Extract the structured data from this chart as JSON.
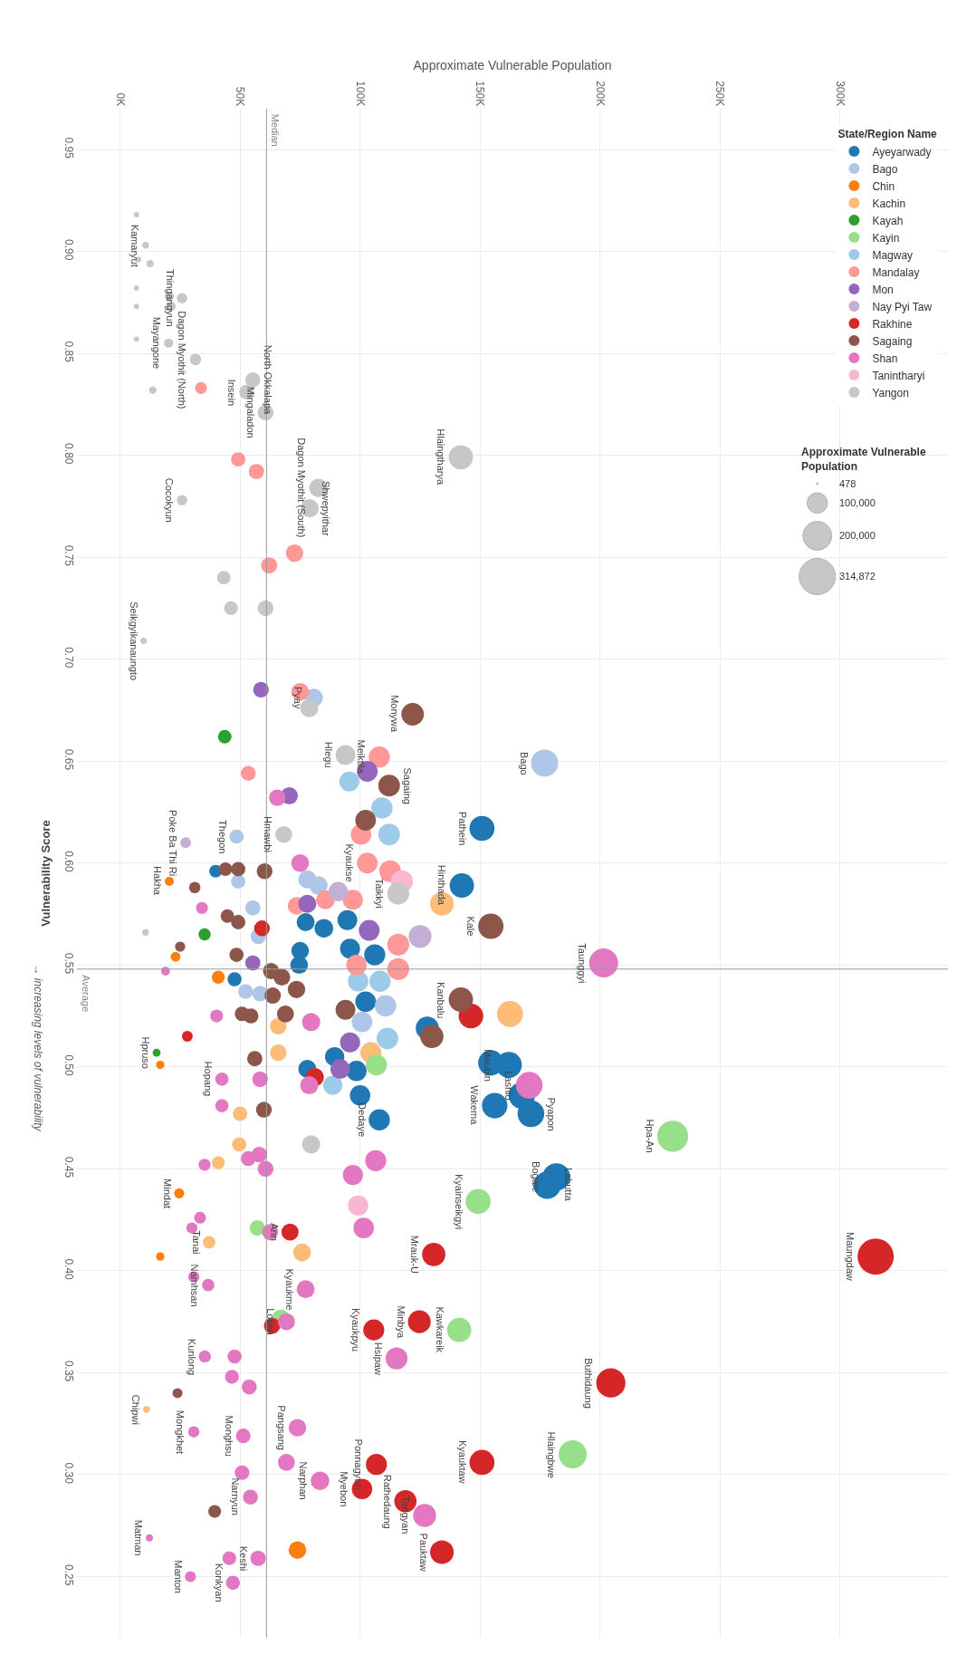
{
  "chart_data": {
    "type": "bubble",
    "xlabel": "Approximate Vulnerable Population",
    "ylabel": "Vulnerability Score",
    "legend_title": "State/Region Name",
    "legend": "top right",
    "grid": true,
    "marker": "circle",
    "xlim": [
      -18000,
      345000
    ],
    "ylim": [
      0.22,
      0.97
    ],
    "xticks": [
      {
        "value": 0,
        "label": "0K"
      },
      {
        "value": 50000,
        "label": "50K"
      },
      {
        "value": 100000,
        "label": "100K"
      },
      {
        "value": 150000,
        "label": "150K"
      },
      {
        "value": 200000,
        "label": "200K"
      },
      {
        "value": 250000,
        "label": "250K"
      },
      {
        "value": 300000,
        "label": "300K"
      }
    ],
    "yticks": [
      0.95,
      {
        "value": 0.9,
        "label": "0.90"
      },
      0.85,
      {
        "value": 0.8,
        "label": "0.80"
      },
      0.75,
      {
        "value": 0.7,
        "label": "0.70"
      },
      0.65,
      {
        "value": 0.6,
        "label": "0.60"
      },
      0.55,
      {
        "value": 0.5,
        "label": "0.50"
      },
      0.45,
      {
        "value": 0.4,
        "label": "0.40"
      },
      0.35,
      {
        "value": 0.3,
        "label": "0.30"
      },
      0.25
    ],
    "size_legend": [
      {
        "value": 478,
        "label": "478"
      },
      {
        "value": 100000,
        "label": "100,000"
      },
      {
        "value": 200000,
        "label": "200,000"
      },
      {
        "value": 314872,
        "label": "314,872"
      }
    ],
    "ref_lines": [
      {
        "axis": "x",
        "value": 61000,
        "label": "Median",
        "color": "#999999"
      },
      {
        "axis": "y",
        "value": 0.548,
        "label": "Average",
        "color": "#999999"
      }
    ],
    "series": [
      {
        "name": "Ayeyarwady",
        "color": "#1f77b4",
        "x": [
          150800,
          142400,
          162000,
          154500,
          167400,
          171200,
          156100,
          181800,
          178000,
          108000,
          128000,
          94700,
          95800,
          106100,
          77300,
          84900,
          75000,
          74600,
          39800,
          47700,
          102300,
          89400,
          98500,
          100000,
          78000
        ],
        "values": [
          0.617,
          0.589,
          0.501,
          0.502,
          0.486,
          0.477,
          0.481,
          0.446,
          0.442,
          0.474,
          0.519,
          0.572,
          0.558,
          0.555,
          0.571,
          0.568,
          0.557,
          0.55,
          0.596,
          0.543,
          0.532,
          0.505,
          0.498,
          0.486,
          0.499
        ],
        "sizes": [
          150800,
          142400,
          162000,
          154500,
          167400,
          171200,
          156100,
          181800,
          178000,
          108000,
          128000,
          94700,
          95800,
          106100,
          77300,
          84900,
          75000,
          74600,
          39800,
          47700,
          102300,
          89400,
          98500,
          100000,
          78000
        ]
      },
      {
        "name": "Bago",
        "color": "#aec7e8",
        "x": [
          176900,
          80700,
          48500,
          49200,
          55300,
          57600,
          52300,
          58300,
          110600,
          100800,
          78000,
          82600
        ],
        "values": [
          0.649,
          0.681,
          0.613,
          0.591,
          0.578,
          0.564,
          0.537,
          0.536,
          0.53,
          0.522,
          0.592,
          0.589
        ],
        "sizes": [
          176900,
          80700,
          48500,
          49200,
          55300,
          57600,
          52300,
          58300,
          110600,
          100800,
          78000,
          82600
        ]
      },
      {
        "name": "Chin",
        "color": "#ff7f0e",
        "x": [
          20500,
          24600,
          16700,
          23100,
          16700,
          73900,
          40900
        ],
        "values": [
          0.591,
          0.438,
          0.501,
          0.554,
          0.407,
          0.263,
          0.544
        ],
        "sizes": [
          20500,
          24600,
          16700,
          23100,
          16700,
          73900,
          40900
        ]
      },
      {
        "name": "Kachin",
        "color": "#ffbb78",
        "x": [
          37100,
          11000,
          134100,
          162500,
          65900,
          65900,
          104500,
          50000,
          40900,
          49600,
          75800
        ],
        "values": [
          0.414,
          0.332,
          0.58,
          0.526,
          0.52,
          0.507,
          0.507,
          0.477,
          0.453,
          0.462,
          0.409
        ],
        "sizes": [
          37100,
          11000,
          134100,
          162500,
          65900,
          65900,
          104500,
          50000,
          40900,
          49600,
          75800
        ]
      },
      {
        "name": "Kayah",
        "color": "#2ca02c",
        "x": [
          15200,
          43600,
          35200
        ],
        "values": [
          0.507,
          0.662,
          0.565
        ],
        "sizes": [
          15200,
          43600,
          35200
        ]
      },
      {
        "name": "Kayin",
        "color": "#98df8a",
        "x": [
          230300,
          188600,
          149200,
          141300,
          57200,
          67000,
          106800
        ],
        "values": [
          0.466,
          0.31,
          0.434,
          0.371,
          0.421,
          0.377,
          0.501
        ],
        "sizes": [
          230300,
          188600,
          149200,
          141300,
          57200,
          67000,
          106800
        ]
      },
      {
        "name": "Magway",
        "color": "#9ecae9",
        "x": [
          95500,
          109100,
          112100,
          111400,
          108300,
          99200,
          88600
        ],
        "values": [
          0.64,
          0.627,
          0.614,
          0.514,
          0.542,
          0.542,
          0.491
        ],
        "sizes": [
          95500,
          109100,
          112100,
          111400,
          108300,
          99200,
          88600
        ]
      },
      {
        "name": "Mandalay",
        "color": "#ff9896",
        "x": [
          108000,
          103000,
          75000,
          53400,
          100400,
          112500,
          115900,
          115900,
          97000,
          85600,
          73500,
          98500,
          49200,
          56800,
          72700,
          62100,
          33700
        ],
        "values": [
          0.652,
          0.6,
          0.684,
          0.644,
          0.614,
          0.596,
          0.56,
          0.548,
          0.582,
          0.582,
          0.579,
          0.55,
          0.798,
          0.792,
          0.752,
          0.746,
          0.833
        ],
        "sizes": [
          108000,
          103000,
          75000,
          53400,
          100400,
          112500,
          115900,
          115900,
          97000,
          85600,
          73500,
          98500,
          49200,
          56800,
          72700,
          62100,
          33700
        ]
      },
      {
        "name": "Mon",
        "color": "#9467bd",
        "x": [
          58700,
          70500,
          103000,
          103800,
          78000,
          55300,
          95800,
          91700
        ],
        "values": [
          0.685,
          0.633,
          0.645,
          0.567,
          0.58,
          0.551,
          0.512,
          0.499
        ],
        "sizes": [
          58700,
          70500,
          103000,
          103800,
          78000,
          55300,
          95800,
          91700
        ]
      },
      {
        "name": "Nay Pyi Taw",
        "color": "#c5b0d5",
        "x": [
          27300,
          125000,
          90900
        ],
        "values": [
          0.61,
          0.564,
          0.586
        ],
        "sizes": [
          27300,
          125000,
          90900
        ]
      },
      {
        "name": "Rakhine",
        "color": "#d62728",
        "x": [
          314872,
          204500,
          150800,
          130700,
          124700,
          105700,
          106800,
          100800,
          118900,
          134100,
          70800,
          59100,
          28000,
          81100,
          146200,
          63300
        ],
        "values": [
          0.407,
          0.345,
          0.306,
          0.408,
          0.375,
          0.371,
          0.305,
          0.293,
          0.287,
          0.262,
          0.419,
          0.568,
          0.515,
          0.495,
          0.525,
          0.373
        ],
        "sizes": [
          314872,
          204500,
          150800,
          130700,
          124700,
          105700,
          106800,
          100800,
          118900,
          134100,
          70800,
          59100,
          28000,
          81100,
          146200,
          63300
        ]
      },
      {
        "name": "Sagaing",
        "color": "#8c564b",
        "x": [
          121900,
          112100,
          142000,
          154500,
          102300,
          129900,
          62900,
          67400,
          73500,
          68900,
          49200,
          44700,
          48500,
          50800,
          54500,
          63600,
          43900,
          49200,
          60200,
          31100,
          25000,
          93900,
          56100,
          59900,
          23900,
          39400
        ],
        "values": [
          0.673,
          0.638,
          0.533,
          0.569,
          0.621,
          0.515,
          0.547,
          0.544,
          0.538,
          0.526,
          0.571,
          0.574,
          0.555,
          0.526,
          0.525,
          0.535,
          0.597,
          0.597,
          0.596,
          0.588,
          0.559,
          0.528,
          0.504,
          0.479,
          0.34,
          0.282
        ],
        "sizes": [
          121900,
          112100,
          142000,
          154500,
          102300,
          129900,
          62900,
          67400,
          73500,
          68900,
          49200,
          44700,
          48500,
          50800,
          54500,
          63600,
          43900,
          49200,
          60200,
          31100,
          25000,
          93900,
          56100,
          59900,
          23900,
          39400
        ]
      },
      {
        "name": "Shan",
        "color": "#e377c2",
        "x": [
          201500,
          170500,
          115200,
          126900,
          83300,
          77300,
          69300,
          73900,
          57500,
          36700,
          35300,
          51300,
          54300,
          30700,
          12200,
          29300,
          47000,
          42400,
          65500,
          75000,
          40200,
          79600,
          78800,
          18900,
          34100,
          42400,
          58300,
          106500,
          97000,
          101500,
          53400,
          58000,
          60600,
          35200,
          62500,
          29900,
          33300,
          30700,
          47700,
          46600,
          53800,
          50800,
          69300,
          45500
        ],
        "values": [
          0.551,
          0.491,
          0.357,
          0.28,
          0.297,
          0.391,
          0.375,
          0.323,
          0.259,
          0.393,
          0.358,
          0.319,
          0.289,
          0.321,
          0.269,
          0.25,
          0.247,
          0.494,
          0.632,
          0.6,
          0.525,
          0.522,
          0.491,
          0.547,
          0.578,
          0.481,
          0.494,
          0.454,
          0.447,
          0.421,
          0.455,
          0.457,
          0.45,
          0.452,
          0.419,
          0.421,
          0.426,
          0.397,
          0.358,
          0.348,
          0.343,
          0.301,
          0.306,
          0.259
        ],
        "sizes": [
          201500,
          170500,
          115200,
          126900,
          83300,
          77300,
          69300,
          73900,
          57500,
          36700,
          35300,
          51300,
          54300,
          30700,
          12200,
          29300,
          47000,
          42400,
          65500,
          75000,
          40200,
          79600,
          78800,
          18900,
          34100,
          42400,
          58300,
          106500,
          97000,
          101500,
          53400,
          58000,
          60600,
          35200,
          62500,
          29900,
          33300,
          30700,
          47700,
          46600,
          53800,
          50800,
          69300,
          45500
        ]
      },
      {
        "name": "Tanintharyi",
        "color": "#f7b6d2",
        "x": [
          117400,
          99200
        ],
        "values": [
          0.591,
          0.432
        ],
        "sizes": [
          117400,
          99200
        ]
      },
      {
        "name": "Yangon",
        "color": "#c7c7c7",
        "x": [
          142000,
          82600,
          79000,
          60600,
          55300,
          52700,
          31400,
          25800,
          10600,
          20200,
          25800,
          9800,
          68200,
          93900,
          115900,
          78800,
          43200,
          46200,
          60600,
          79600,
          6800,
          7600,
          12500,
          6800,
          6800,
          6800,
          13600,
          20500,
          21200,
          10600
        ],
        "values": [
          0.799,
          0.784,
          0.774,
          0.821,
          0.837,
          0.831,
          0.847,
          0.877,
          0.903,
          0.855,
          0.778,
          0.709,
          0.614,
          0.653,
          0.585,
          0.676,
          0.74,
          0.725,
          0.725,
          0.462,
          0.918,
          0.896,
          0.894,
          0.882,
          0.873,
          0.857,
          0.832,
          0.878,
          0.873,
          0.566
        ],
        "sizes": [
          142000,
          82600,
          79000,
          60600,
          55300,
          52700,
          31400,
          25800,
          10600,
          20200,
          25800,
          9800,
          68200,
          93900,
          115900,
          78800,
          43200,
          46200,
          60600,
          79600,
          6800,
          7600,
          12500,
          6800,
          6800,
          6800,
          13600,
          20500,
          21200,
          10600
        ]
      }
    ],
    "annotations": [
      "→ increasing levels of vulnerability",
      {
        "text": "Maungdaw",
        "x": 314872,
        "y": 0.407
      },
      {
        "text": "Buthidaung",
        "x": 204500,
        "y": 0.345
      },
      {
        "text": "Hlaingbwe",
        "x": 188600,
        "y": 0.31
      },
      {
        "text": "Kyauktaw",
        "x": 150800,
        "y": 0.306
      },
      {
        "text": "Hpa-An",
        "x": 230300,
        "y": 0.466
      },
      {
        "text": "Bogale",
        "x": 181800,
        "y": 0.446
      },
      {
        "text": "Labutta",
        "x": 178000,
        "y": 0.442
      },
      {
        "text": "Kyainseikgyi",
        "x": 149200,
        "y": 0.434
      },
      {
        "text": "Kawkareik",
        "x": 141300,
        "y": 0.371
      },
      {
        "text": "Mrauk-U",
        "x": 130700,
        "y": 0.408
      },
      {
        "text": "Minbya",
        "x": 124700,
        "y": 0.375
      },
      {
        "text": "Hsipaw",
        "x": 115200,
        "y": 0.357
      },
      {
        "text": "Kyaukpyu",
        "x": 105700,
        "y": 0.371
      },
      {
        "text": "Ponnagyun",
        "x": 106800,
        "y": 0.305
      },
      {
        "text": "Myebon",
        "x": 100800,
        "y": 0.293
      },
      {
        "text": "Rathedaung",
        "x": 118900,
        "y": 0.287
      },
      {
        "text": "Tangyan",
        "x": 126900,
        "y": 0.28
      },
      {
        "text": "Pauktaw",
        "x": 134100,
        "y": 0.262
      },
      {
        "text": "Narphan",
        "x": 83300,
        "y": 0.297
      },
      {
        "text": "Kyaukme",
        "x": 77300,
        "y": 0.391
      },
      {
        "text": "Loilen",
        "x": 69300,
        "y": 0.375
      },
      {
        "text": "Pangsang",
        "x": 73900,
        "y": 0.323
      },
      {
        "text": "Ann",
        "x": 70800,
        "y": 0.419
      },
      {
        "text": "Keshi",
        "x": 57500,
        "y": 0.259
      },
      {
        "text": "Namhsan",
        "x": 36700,
        "y": 0.393
      },
      {
        "text": "Kunlong",
        "x": 35300,
        "y": 0.358
      },
      {
        "text": "Monghsu",
        "x": 51300,
        "y": 0.319
      },
      {
        "text": "Narnyun",
        "x": 54300,
        "y": 0.289
      },
      {
        "text": "Mongkhet",
        "x": 30700,
        "y": 0.321
      },
      {
        "text": "Matman",
        "x": 12200,
        "y": 0.269
      },
      {
        "text": "Manton",
        "x": 29300,
        "y": 0.25
      },
      {
        "text": "Konkyan",
        "x": 47000,
        "y": 0.247
      },
      {
        "text": "Chipwi",
        "x": 11000,
        "y": 0.332
      },
      {
        "text": "Mindat",
        "x": 24600,
        "y": 0.438
      },
      {
        "text": "Tanai",
        "x": 37100,
        "y": 0.414
      },
      {
        "text": "Hopang",
        "x": 42400,
        "y": 0.494
      },
      {
        "text": "Hpruso",
        "x": 15200,
        "y": 0.507
      },
      {
        "text": "Hakha",
        "x": 20500,
        "y": 0.591
      },
      {
        "text": "Seikgyikanaungto",
        "x": 9800,
        "y": 0.709
      },
      {
        "text": "Poke Ba Thi Ri",
        "x": 27300,
        "y": 0.61
      },
      {
        "text": "Thegon",
        "x": 48500,
        "y": 0.613
      },
      {
        "text": "Hmawbi",
        "x": 68200,
        "y": 0.614
      },
      {
        "text": "Hlegu",
        "x": 93900,
        "y": 0.653
      },
      {
        "text": "Kyaukse",
        "x": 103000,
        "y": 0.6
      },
      {
        "text": "Pyay",
        "x": 80700,
        "y": 0.681
      },
      {
        "text": "Meiktila",
        "x": 108000,
        "y": 0.652
      },
      {
        "text": "Monywa",
        "x": 121900,
        "y": 0.673
      },
      {
        "text": "Sagaing",
        "x": 112100,
        "y": 0.638
      },
      {
        "text": "Hinthada",
        "x": 142400,
        "y": 0.589
      },
      {
        "text": "Pathein",
        "x": 150800,
        "y": 0.617
      },
      {
        "text": "Taikkyi",
        "x": 115900,
        "y": 0.585
      },
      {
        "text": "Kanbalu",
        "x": 142000,
        "y": 0.533
      },
      {
        "text": "Kale",
        "x": 154500,
        "y": 0.569
      },
      {
        "text": "Taunggyi",
        "x": 201500,
        "y": 0.551
      },
      {
        "text": "Maubin",
        "x": 162000,
        "y": 0.501
      },
      {
        "text": "Lashio",
        "x": 170500,
        "y": 0.491
      },
      {
        "text": "Pyapon",
        "x": 171200,
        "y": 0.477
      },
      {
        "text": "Wakema",
        "x": 156100,
        "y": 0.481
      },
      {
        "text": "Dedaye",
        "x": 108000,
        "y": 0.474
      },
      {
        "text": "Bago",
        "x": 176900,
        "y": 0.649
      },
      {
        "text": "Hlaingtharya",
        "x": 142000,
        "y": 0.799
      },
      {
        "text": "Dagon Myothit (South)",
        "x": 82600,
        "y": 0.784
      },
      {
        "text": "Shwepyithar",
        "x": 79000,
        "y": 0.774
      },
      {
        "text": "Mingaladon",
        "x": 60600,
        "y": 0.821
      },
      {
        "text": "North Okkalapa",
        "x": 55300,
        "y": 0.837
      },
      {
        "text": "Insein",
        "x": 52700,
        "y": 0.831
      },
      {
        "text": "Dagon Myothit (North)",
        "x": 31400,
        "y": 0.847
      },
      {
        "text": "Thingangyun",
        "x": 25800,
        "y": 0.877
      },
      {
        "text": "Kamaryut",
        "x": 10600,
        "y": 0.903
      },
      {
        "text": "Mayangone",
        "x": 20200,
        "y": 0.855
      },
      {
        "text": "Cocokyun",
        "x": 25800,
        "y": 0.778
      }
    ]
  }
}
